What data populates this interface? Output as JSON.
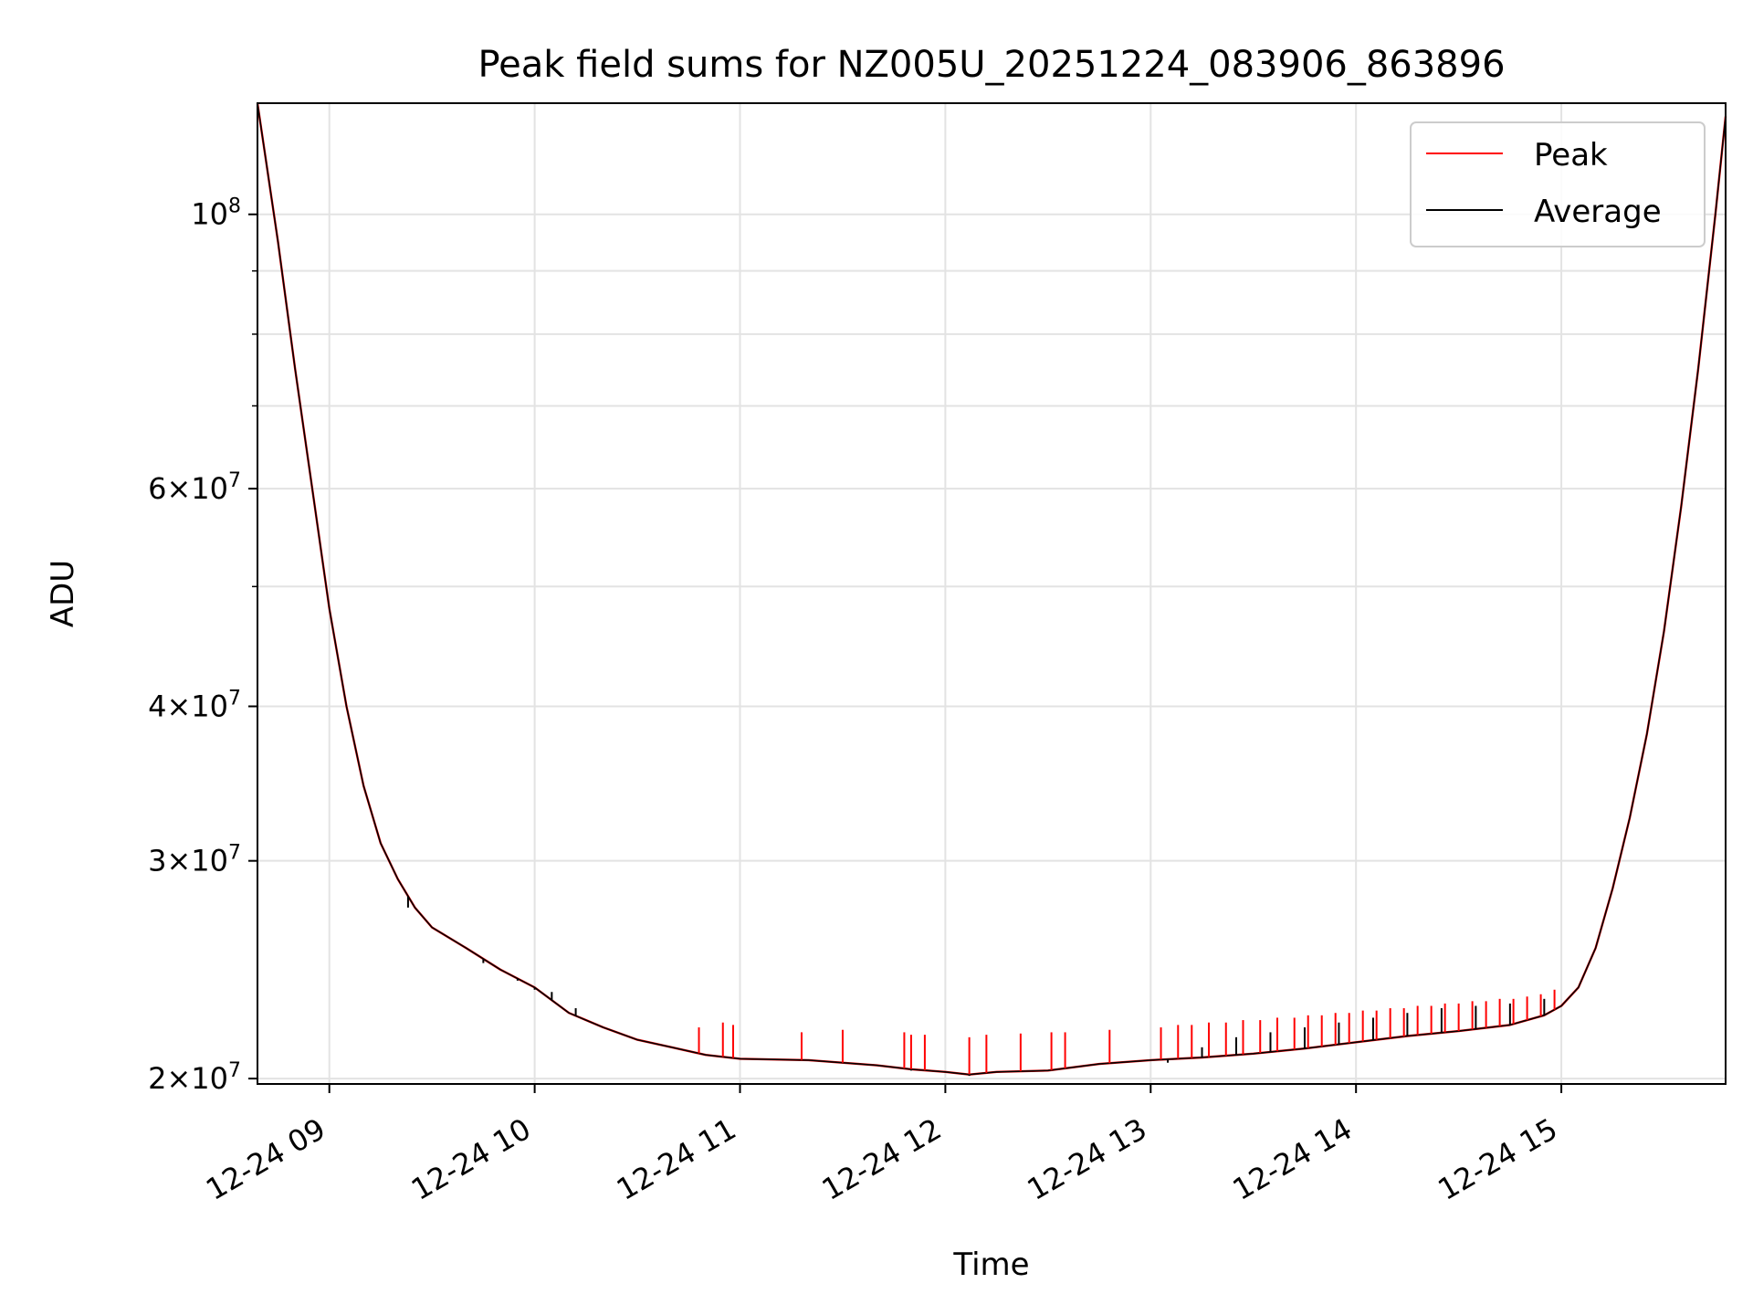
{
  "chart_data": {
    "type": "line",
    "title": "Peak field sums for NZ005U_20251224_083906_863896",
    "xlabel": "Time",
    "ylabel": "ADU",
    "y_scale": "log",
    "grid": true,
    "legend_position": "top-right",
    "xlim": [
      "2025-12-24 08:39",
      "2025-12-24 15:48"
    ],
    "ylim": [
      19800000,
      123000000
    ],
    "x_ticks": [
      {
        "time": "2025-12-24 09:00",
        "label": "12-24 09"
      },
      {
        "time": "2025-12-24 10:00",
        "label": "12-24 10"
      },
      {
        "time": "2025-12-24 11:00",
        "label": "12-24 11"
      },
      {
        "time": "2025-12-24 12:00",
        "label": "12-24 12"
      },
      {
        "time": "2025-12-24 13:00",
        "label": "12-24 13"
      },
      {
        "time": "2025-12-24 14:00",
        "label": "12-24 14"
      },
      {
        "time": "2025-12-24 15:00",
        "label": "12-24 15"
      }
    ],
    "y_ticks": [
      {
        "value": 20000000,
        "mant": "2",
        "exp": "7"
      },
      {
        "value": 30000000,
        "mant": "3",
        "exp": "7"
      },
      {
        "value": 40000000,
        "mant": "4",
        "exp": "7"
      },
      {
        "value": 60000000,
        "mant": "6",
        "exp": "7"
      },
      {
        "value": 100000000,
        "mant": "",
        "exp": "8"
      }
    ],
    "y_minor_ticks": [
      50000000,
      70000000,
      80000000,
      90000000
    ],
    "series": [
      {
        "name": "Peak",
        "color": "#ff0000",
        "x": [
          "2025-12-24 08:39",
          "2025-12-24 08:45",
          "2025-12-24 08:50",
          "2025-12-24 08:55",
          "2025-12-24 09:00",
          "2025-12-24 09:05",
          "2025-12-24 09:10",
          "2025-12-24 09:15",
          "2025-12-24 09:20",
          "2025-12-24 09:25",
          "2025-12-24 09:30",
          "2025-12-24 09:40",
          "2025-12-24 09:50",
          "2025-12-24 10:00",
          "2025-12-24 10:10",
          "2025-12-24 10:20",
          "2025-12-24 10:30",
          "2025-12-24 10:40",
          "2025-12-24 10:50",
          "2025-12-24 11:00",
          "2025-12-24 11:20",
          "2025-12-24 11:40",
          "2025-12-24 11:50",
          "2025-12-24 12:00",
          "2025-12-24 12:07",
          "2025-12-24 12:15",
          "2025-12-24 12:30",
          "2025-12-24 12:45",
          "2025-12-24 13:00",
          "2025-12-24 13:15",
          "2025-12-24 13:30",
          "2025-12-24 13:45",
          "2025-12-24 14:00",
          "2025-12-24 14:15",
          "2025-12-24 14:30",
          "2025-12-24 14:45",
          "2025-12-24 14:55",
          "2025-12-24 15:00",
          "2025-12-24 15:05",
          "2025-12-24 15:10",
          "2025-12-24 15:15",
          "2025-12-24 15:20",
          "2025-12-24 15:25",
          "2025-12-24 15:30",
          "2025-12-24 15:35",
          "2025-12-24 15:40",
          "2025-12-24 15:45",
          "2025-12-24 15:48"
        ],
        "values": [
          123000000,
          95000000,
          75000000,
          60000000,
          48000000,
          40000000,
          34500000,
          31000000,
          29000000,
          27500000,
          26500000,
          25500000,
          24500000,
          23700000,
          22600000,
          22000000,
          21500000,
          21200000,
          20900000,
          20750000,
          20700000,
          20500000,
          20350000,
          20250000,
          20150000,
          20250000,
          20300000,
          20550000,
          20700000,
          20800000,
          20950000,
          21150000,
          21400000,
          21650000,
          21850000,
          22100000,
          22500000,
          22900000,
          23700000,
          25500000,
          28500000,
          32500000,
          38000000,
          46000000,
          58000000,
          75000000,
          100000000,
          120000000
        ]
      },
      {
        "name": "Average",
        "color": "#000000",
        "x": [
          "2025-12-24 08:39",
          "2025-12-24 08:45",
          "2025-12-24 08:50",
          "2025-12-24 08:55",
          "2025-12-24 09:00",
          "2025-12-24 09:05",
          "2025-12-24 09:10",
          "2025-12-24 09:15",
          "2025-12-24 09:20",
          "2025-12-24 09:25",
          "2025-12-24 09:30",
          "2025-12-24 09:40",
          "2025-12-24 09:50",
          "2025-12-24 10:00",
          "2025-12-24 10:10",
          "2025-12-24 10:20",
          "2025-12-24 10:30",
          "2025-12-24 10:40",
          "2025-12-24 10:50",
          "2025-12-24 11:00",
          "2025-12-24 11:20",
          "2025-12-24 11:40",
          "2025-12-24 11:50",
          "2025-12-24 12:00",
          "2025-12-24 12:07",
          "2025-12-24 12:15",
          "2025-12-24 12:30",
          "2025-12-24 12:45",
          "2025-12-24 13:00",
          "2025-12-24 13:15",
          "2025-12-24 13:30",
          "2025-12-24 13:45",
          "2025-12-24 14:00",
          "2025-12-24 14:15",
          "2025-12-24 14:30",
          "2025-12-24 14:45",
          "2025-12-24 14:55",
          "2025-12-24 15:00",
          "2025-12-24 15:05",
          "2025-12-24 15:10",
          "2025-12-24 15:15",
          "2025-12-24 15:20",
          "2025-12-24 15:25",
          "2025-12-24 15:30",
          "2025-12-24 15:35",
          "2025-12-24 15:40",
          "2025-12-24 15:45",
          "2025-12-24 15:48"
        ],
        "values": [
          123000000,
          95000000,
          75000000,
          60000000,
          48000000,
          40000000,
          34500000,
          31000000,
          29000000,
          27500000,
          26500000,
          25500000,
          24500000,
          23700000,
          22600000,
          22000000,
          21500000,
          21200000,
          20900000,
          20750000,
          20700000,
          20500000,
          20350000,
          20250000,
          20150000,
          20250000,
          20300000,
          20550000,
          20700000,
          20800000,
          20950000,
          21150000,
          21400000,
          21650000,
          21850000,
          22100000,
          22500000,
          22900000,
          23700000,
          25500000,
          28500000,
          32500000,
          38000000,
          46000000,
          58000000,
          75000000,
          100000000,
          120000000
        ]
      }
    ],
    "spikes": [
      {
        "series": "Peak",
        "times": [
          "2025-12-24 10:48",
          "2025-12-24 10:55",
          "2025-12-24 10:58",
          "2025-12-24 11:18",
          "2025-12-24 11:30",
          "2025-12-24 11:48",
          "2025-12-24 11:50",
          "2025-12-24 11:54",
          "2025-12-24 12:07",
          "2025-12-24 12:12",
          "2025-12-24 12:22",
          "2025-12-24 12:31",
          "2025-12-24 12:35",
          "2025-12-24 12:48",
          "2025-12-24 13:03",
          "2025-12-24 13:08",
          "2025-12-24 13:12",
          "2025-12-24 13:17",
          "2025-12-24 13:22",
          "2025-12-24 13:27",
          "2025-12-24 13:32",
          "2025-12-24 13:37",
          "2025-12-24 13:42",
          "2025-12-24 13:46",
          "2025-12-24 13:50",
          "2025-12-24 13:54",
          "2025-12-24 13:58",
          "2025-12-24 14:02",
          "2025-12-24 14:06",
          "2025-12-24 14:10",
          "2025-12-24 14:14",
          "2025-12-24 14:18",
          "2025-12-24 14:22",
          "2025-12-24 14:26",
          "2025-12-24 14:30",
          "2025-12-24 14:34",
          "2025-12-24 14:38",
          "2025-12-24 14:42",
          "2025-12-24 14:46",
          "2025-12-24 14:50",
          "2025-12-24 14:54",
          "2025-12-24 14:58"
        ],
        "values": [
          22000000,
          22200000,
          22100000,
          21800000,
          21900000,
          21800000,
          21700000,
          21700000,
          21600000,
          21700000,
          21750000,
          21800000,
          21800000,
          21900000,
          22000000,
          22100000,
          22100000,
          22200000,
          22200000,
          22300000,
          22300000,
          22400000,
          22400000,
          22500000,
          22500000,
          22600000,
          22600000,
          22700000,
          22700000,
          22800000,
          22800000,
          22900000,
          22900000,
          23000000,
          23000000,
          23100000,
          23100000,
          23200000,
          23200000,
          23300000,
          23400000,
          23600000
        ]
      },
      {
        "series": "Average",
        "times": [
          "2025-12-24 09:23",
          "2025-12-24 09:45",
          "2025-12-24 09:55",
          "2025-12-24 10:00",
          "2025-12-24 10:05",
          "2025-12-24 10:12",
          "2025-12-24 11:50",
          "2025-12-24 12:07",
          "2025-12-24 13:05",
          "2025-12-24 13:15",
          "2025-12-24 13:25",
          "2025-12-24 13:35",
          "2025-12-24 13:45",
          "2025-12-24 13:55",
          "2025-12-24 14:05",
          "2025-12-24 14:15",
          "2025-12-24 14:25",
          "2025-12-24 14:35",
          "2025-12-24 14:45",
          "2025-12-24 14:55"
        ],
        "values": [
          27500000,
          24800000,
          24000000,
          23600000,
          23500000,
          22800000,
          20300000,
          20100000,
          20600000,
          21200000,
          21600000,
          21800000,
          22000000,
          22200000,
          22400000,
          22600000,
          22800000,
          22900000,
          23000000,
          23200000
        ]
      }
    ]
  }
}
